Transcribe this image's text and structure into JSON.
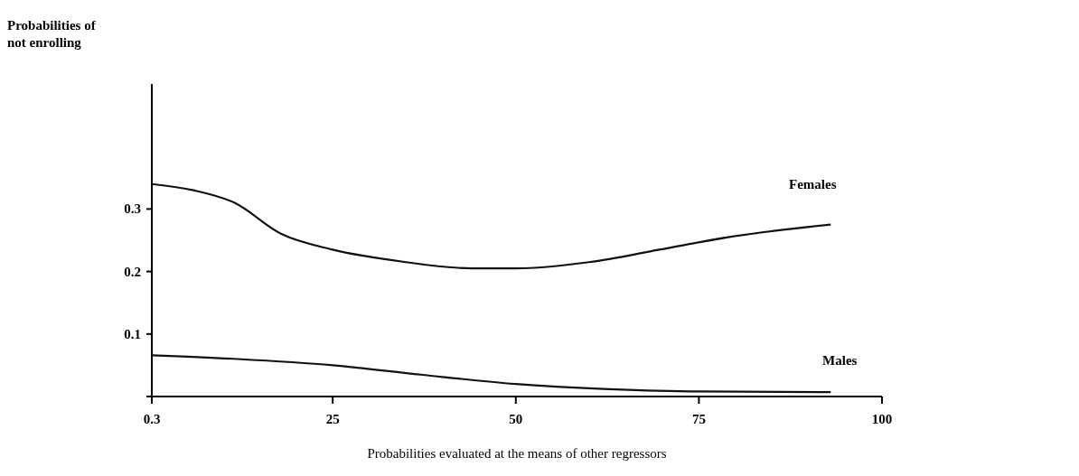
{
  "chart_data": {
    "type": "line",
    "xlabel": "Probabilities evaluated at the means of other regressors",
    "ylabel": "Probabilities of not enrolling",
    "xlim": [
      0.3,
      100
    ],
    "xticks": [
      0.3,
      25,
      50,
      75,
      100
    ],
    "ylim": [
      0,
      0.5
    ],
    "yticks": [
      {
        "value": 0,
        "label": null
      },
      0.1,
      0.2,
      0.3
    ],
    "grid": false,
    "series": [
      {
        "name": "Females",
        "color": "#111111",
        "x": [
          0.3,
          6,
          11.6,
          18,
          25,
          35,
          44,
          50,
          60,
          69.6,
          79,
          93
        ],
        "values": [
          0.34,
          0.33,
          0.31,
          0.26,
          0.235,
          0.215,
          0.205,
          0.205,
          0.215,
          0.235,
          0.255,
          0.275
        ]
      },
      {
        "name": "Males",
        "color": "#111111",
        "x": [
          0.3,
          12,
          25,
          37,
          50,
          62,
          75,
          93
        ],
        "values": [
          0.066,
          0.06,
          0.05,
          0.035,
          0.02,
          0.012,
          0.008,
          0.007
        ]
      }
    ]
  }
}
